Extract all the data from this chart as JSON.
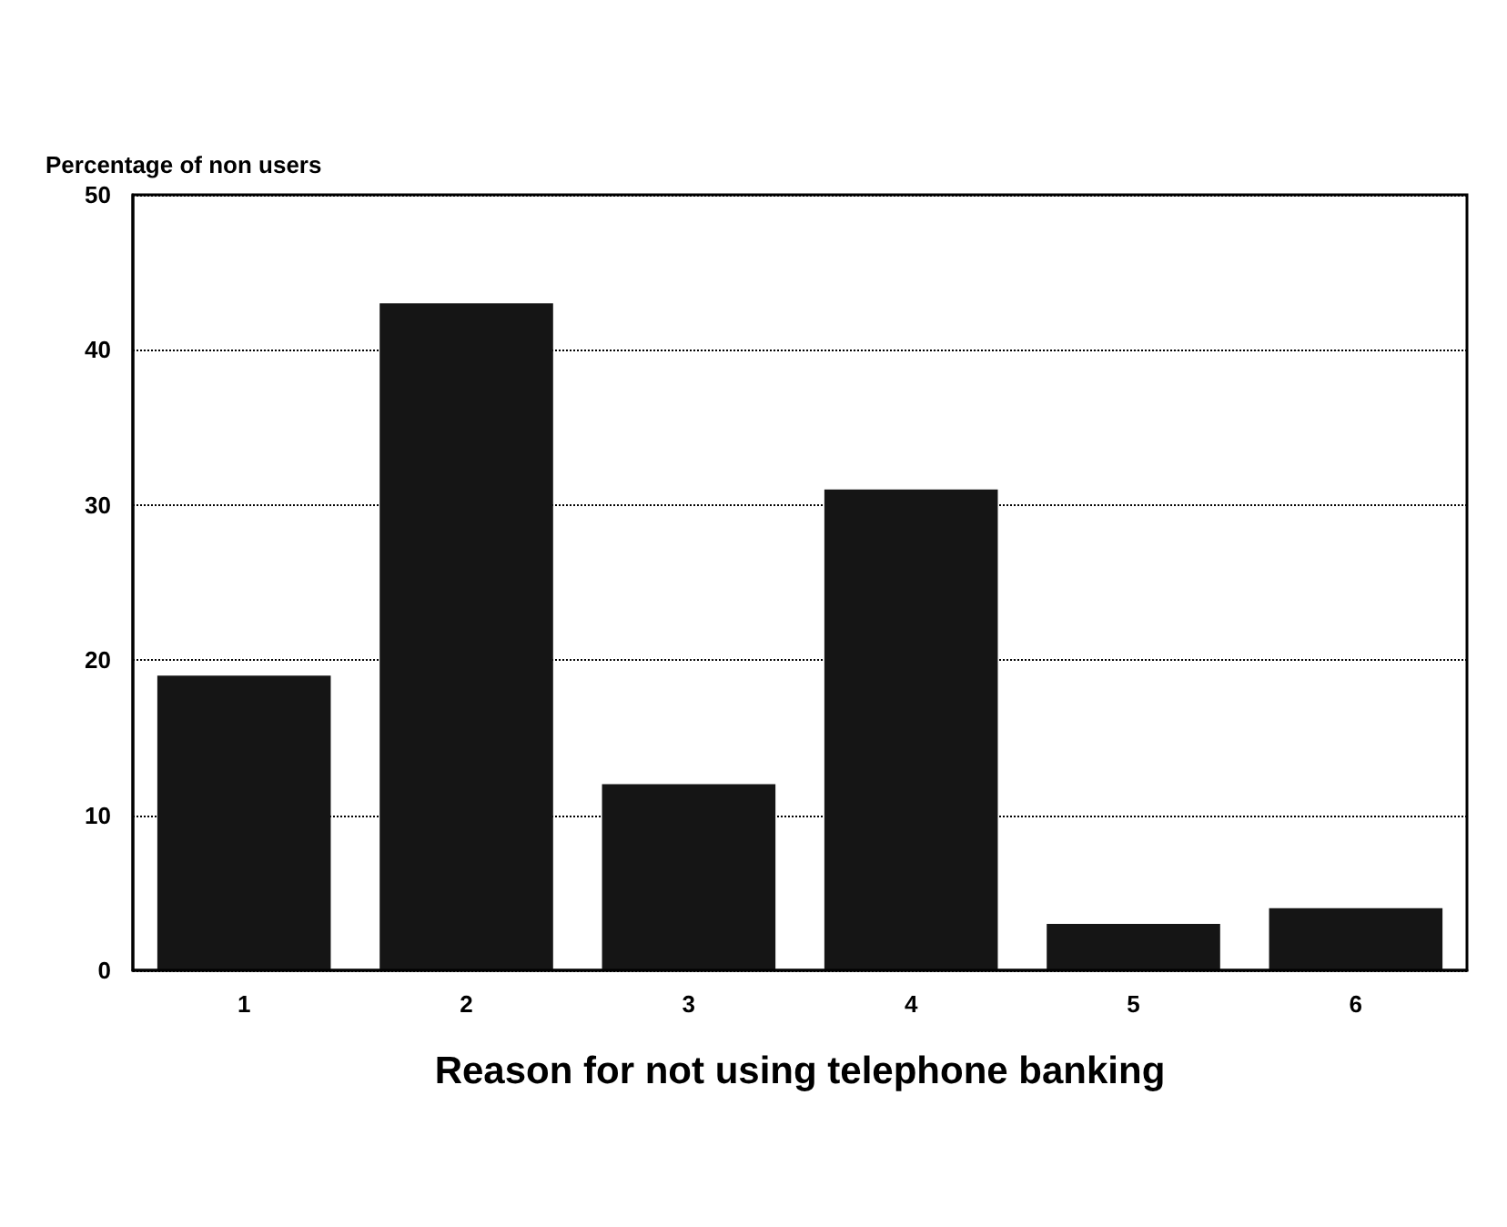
{
  "chart_data": {
    "type": "bar",
    "xlabel": "Reason for not using telephone banking",
    "ylabel": "Percentage of non users",
    "categories": [
      "1",
      "2",
      "3",
      "4",
      "5",
      "6"
    ],
    "values": [
      19,
      43,
      12,
      31,
      3,
      4
    ],
    "color": "#151515",
    "ylim": [
      0,
      50
    ],
    "yticks": [
      0,
      10,
      20,
      30,
      40,
      50
    ],
    "grid": "y"
  }
}
